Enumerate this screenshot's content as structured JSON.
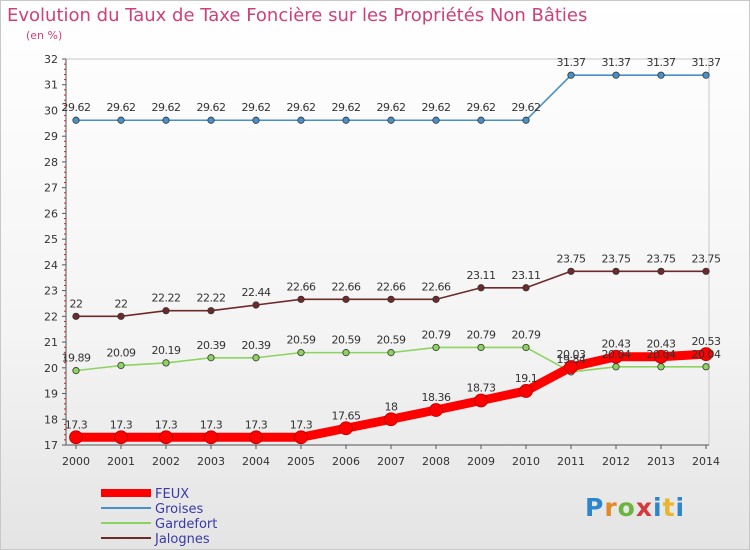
{
  "chart_data": {
    "type": "line",
    "title": "Evolution du Taux de Taxe Foncière sur les Propriétés Non Bâties",
    "ylabel": "(en %)",
    "xlabel": "",
    "ylim": [
      17,
      32
    ],
    "yticks": [
      "17",
      "18",
      "19",
      "20",
      "21",
      "22",
      "23",
      "24",
      "25",
      "26",
      "27",
      "28",
      "29",
      "30",
      "31",
      "32"
    ],
    "categories": [
      "2000",
      "2001",
      "2002",
      "2003",
      "2004",
      "2005",
      "2006",
      "2007",
      "2008",
      "2009",
      "2010",
      "2011",
      "2012",
      "2013",
      "2014"
    ],
    "series": [
      {
        "name": "FEUX",
        "color": "#ff0000",
        "values": [
          17.3,
          17.3,
          17.3,
          17.3,
          17.3,
          17.3,
          17.65,
          18,
          18.36,
          18.73,
          19.1,
          20.03,
          20.43,
          20.43,
          20.53
        ],
        "labels": [
          "17.3",
          "17.3",
          "17.3",
          "17.3",
          "17.3",
          "17.3",
          "17.65",
          "18",
          "18.36",
          "18.73",
          "19.1",
          "20.03",
          "20.43",
          "20.43",
          "20.53"
        ]
      },
      {
        "name": "Groises",
        "color": "#4a90c8",
        "values": [
          29.62,
          29.62,
          29.62,
          29.62,
          29.62,
          29.62,
          29.62,
          29.62,
          29.62,
          29.62,
          29.62,
          31.37,
          31.37,
          31.37,
          31.37
        ],
        "labels": [
          "29.62",
          "29.62",
          "29.62",
          "29.62",
          "29.62",
          "29.62",
          "29.62",
          "29.62",
          "29.62",
          "29.62",
          "29.62",
          "31.37",
          "31.37",
          "31.37",
          "31.37"
        ]
      },
      {
        "name": "Gardefort",
        "color": "#8dd35f",
        "values": [
          19.89,
          20.09,
          20.19,
          20.39,
          20.39,
          20.59,
          20.59,
          20.59,
          20.79,
          20.79,
          20.79,
          19.84,
          20.04,
          20.04,
          20.04
        ],
        "labels": [
          "19.89",
          "20.09",
          "20.19",
          "20.39",
          "20.39",
          "20.59",
          "20.59",
          "20.59",
          "20.79",
          "20.79",
          "20.79",
          "19.84",
          "20.04",
          "20.04",
          "20.04"
        ]
      },
      {
        "name": "Jalognes",
        "color": "#6e2a2a",
        "values": [
          22,
          22,
          22.22,
          22.22,
          22.44,
          22.66,
          22.66,
          22.66,
          22.66,
          23.11,
          23.11,
          23.75,
          23.75,
          23.75,
          23.75
        ],
        "labels": [
          "22",
          "22",
          "22.22",
          "22.22",
          "22.44",
          "22.66",
          "22.66",
          "22.66",
          "22.66",
          "23.11",
          "23.11",
          "23.75",
          "23.75",
          "23.75",
          "23.75"
        ]
      }
    ],
    "legend_position": "bottom-left",
    "grid": false
  },
  "logo": {
    "parts": [
      "P",
      "r",
      "o",
      "x",
      "i",
      "t",
      "i"
    ]
  }
}
